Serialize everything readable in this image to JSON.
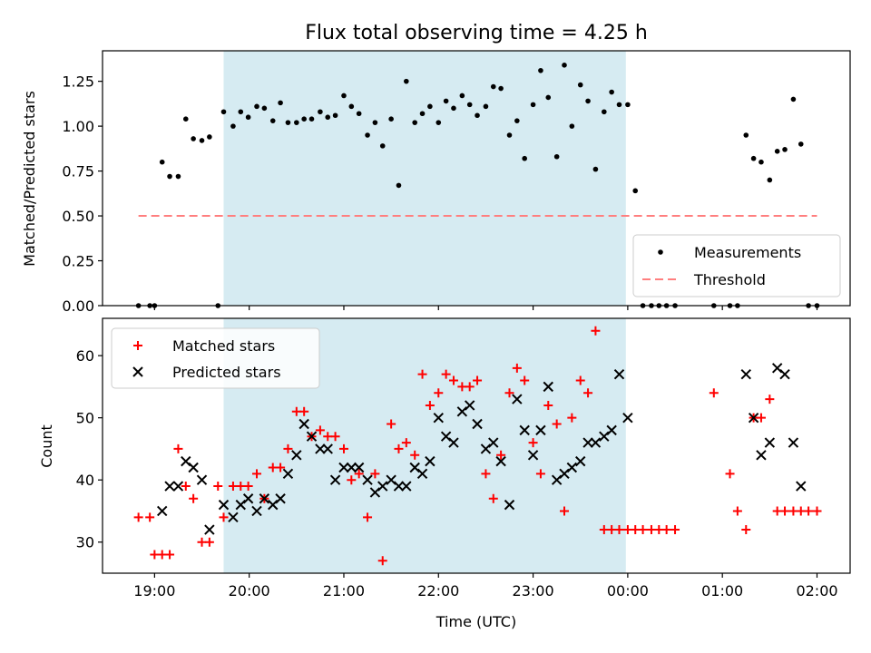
{
  "figure": {
    "title": "Flux total observing time = 4.25 h",
    "xlabel": "Time (UTC)",
    "x_ticks": [
      "19:00",
      "20:00",
      "21:00",
      "22:00",
      "23:00",
      "00:00",
      "01:00",
      "02:00"
    ]
  },
  "chart_data": [
    {
      "type": "scatter",
      "name": "ratio",
      "ylabel": "Matched/Predicted stars",
      "ylim": [
        0,
        1.42
      ],
      "y_ticks": [
        "0.00",
        "0.25",
        "0.50",
        "0.75",
        "1.00",
        "1.25"
      ],
      "xlim_hours": [
        18.45,
        26.35
      ],
      "shaded_span_hours": [
        19.73,
        23.98
      ],
      "shade_color": "#add8e6",
      "legend": {
        "placement": "lower right",
        "entries": [
          "Measurements",
          "Threshold"
        ]
      },
      "threshold": {
        "name": "Threshold",
        "value": 0.5,
        "x_start_hours": 18.83,
        "x_end_hours": 26.0,
        "color": "#ff7f7f"
      },
      "measurements": {
        "name": "Measurements",
        "color": "#000000",
        "x_hours": [
          18.83,
          18.95,
          19.0,
          19.08,
          19.16,
          19.25,
          19.33,
          19.41,
          19.5,
          19.58,
          19.67,
          19.73,
          19.83,
          19.91,
          19.99,
          20.08,
          20.16,
          20.25,
          20.33,
          20.41,
          20.5,
          20.58,
          20.66,
          20.75,
          20.83,
          20.91,
          21.0,
          21.08,
          21.16,
          21.25,
          21.33,
          21.41,
          21.5,
          21.58,
          21.66,
          21.75,
          21.83,
          21.91,
          22.0,
          22.08,
          22.16,
          22.25,
          22.33,
          22.41,
          22.5,
          22.58,
          22.66,
          22.75,
          22.83,
          22.91,
          23.0,
          23.08,
          23.16,
          23.25,
          23.33,
          23.41,
          23.5,
          23.58,
          23.66,
          23.75,
          23.83,
          23.91,
          24.0,
          24.08,
          24.16,
          24.25,
          24.33,
          24.41,
          24.5,
          24.91,
          25.08,
          25.16,
          25.25,
          25.33,
          25.41,
          25.5,
          25.58,
          25.66,
          25.75,
          25.83,
          25.91,
          26.0
        ],
        "y": [
          0.0,
          0.0,
          0.0,
          0.8,
          0.72,
          0.72,
          1.04,
          0.93,
          0.92,
          0.94,
          0.0,
          1.08,
          1.0,
          1.08,
          1.05,
          1.11,
          1.1,
          1.03,
          1.13,
          1.02,
          1.02,
          1.04,
          1.04,
          1.08,
          1.05,
          1.06,
          1.17,
          1.11,
          1.07,
          0.95,
          1.02,
          0.89,
          1.04,
          0.67,
          1.25,
          1.02,
          1.07,
          1.11,
          1.02,
          1.14,
          1.1,
          1.17,
          1.12,
          1.06,
          1.11,
          1.22,
          1.21,
          0.95,
          1.03,
          0.82,
          1.12,
          1.31,
          1.16,
          0.83,
          1.34,
          1.0,
          1.23,
          1.14,
          0.76,
          1.08,
          1.19,
          1.12,
          1.12,
          0.64,
          0.0,
          0.0,
          0.0,
          0.0,
          0.0,
          0.0,
          0.0,
          0.0,
          0.95,
          0.82,
          0.8,
          0.7,
          0.86,
          0.87,
          1.15,
          0.9,
          0.0,
          0.0
        ]
      }
    },
    {
      "type": "scatter",
      "name": "counts",
      "ylabel": "Count",
      "ylim": [
        25,
        66
      ],
      "y_ticks": [
        "30",
        "40",
        "50",
        "60"
      ],
      "xlim_hours": [
        18.45,
        26.35
      ],
      "shaded_span_hours": [
        19.73,
        23.98
      ],
      "shade_color": "#add8e6",
      "legend": {
        "placement": "upper left",
        "entries": [
          "Matched stars",
          "Predicted stars"
        ]
      },
      "series": [
        {
          "name": "Matched stars",
          "marker": "+",
          "color": "#ff0000",
          "x_hours": [
            18.83,
            18.95,
            19.0,
            19.08,
            19.16,
            19.25,
            19.33,
            19.41,
            19.5,
            19.58,
            19.67,
            19.73,
            19.83,
            19.91,
            19.99,
            20.08,
            20.16,
            20.25,
            20.33,
            20.41,
            20.5,
            20.58,
            20.66,
            20.75,
            20.83,
            20.91,
            21.0,
            21.08,
            21.16,
            21.25,
            21.33,
            21.41,
            21.5,
            21.58,
            21.66,
            21.75,
            21.83,
            21.91,
            22.0,
            22.08,
            22.16,
            22.25,
            22.33,
            22.41,
            22.5,
            22.58,
            22.66,
            22.75,
            22.83,
            22.91,
            23.0,
            23.08,
            23.16,
            23.25,
            23.33,
            23.41,
            23.5,
            23.58,
            23.66,
            23.75,
            23.83,
            23.91,
            24.0,
            24.08,
            24.16,
            24.25,
            24.33,
            24.41,
            24.5,
            24.91,
            25.08,
            25.16,
            25.25,
            25.33,
            25.41,
            25.5,
            25.58,
            25.66,
            25.75,
            25.83,
            25.91,
            26.0
          ],
          "y": [
            34,
            34,
            28,
            28,
            28,
            45,
            39,
            37,
            30,
            30,
            39,
            34,
            39,
            39,
            39,
            41,
            37,
            42,
            42,
            45,
            51,
            51,
            47,
            48,
            47,
            47,
            45,
            40,
            41,
            34,
            41,
            27,
            49,
            45,
            46,
            44,
            57,
            52,
            54,
            57,
            56,
            55,
            55,
            56,
            41,
            37,
            44,
            54,
            58,
            56,
            46,
            41,
            52,
            49,
            35,
            50,
            56,
            54,
            64,
            32,
            32,
            32,
            32,
            32,
            32,
            32,
            32,
            32,
            32,
            54,
            41,
            35,
            32,
            50,
            50,
            53,
            35,
            35,
            35,
            35,
            35,
            35
          ]
        },
        {
          "name": "Predicted stars",
          "marker": "x",
          "color": "#000000",
          "x_hours": [
            19.08,
            19.16,
            19.25,
            19.33,
            19.41,
            19.5,
            19.58,
            19.73,
            19.83,
            19.91,
            19.99,
            20.08,
            20.16,
            20.25,
            20.33,
            20.41,
            20.5,
            20.58,
            20.66,
            20.75,
            20.83,
            20.91,
            21.0,
            21.08,
            21.16,
            21.25,
            21.33,
            21.41,
            21.5,
            21.58,
            21.66,
            21.75,
            21.83,
            21.91,
            22.0,
            22.08,
            22.16,
            22.25,
            22.33,
            22.41,
            22.5,
            22.58,
            22.66,
            22.75,
            22.83,
            22.91,
            23.0,
            23.08,
            23.16,
            23.25,
            23.33,
            23.41,
            23.5,
            23.58,
            23.66,
            23.75,
            23.83,
            23.91,
            24.0,
            25.25,
            25.33,
            25.41,
            25.5,
            25.58,
            25.66,
            25.75,
            25.83
          ],
          "y": [
            35,
            39,
            39,
            43,
            42,
            40,
            32,
            36,
            34,
            36,
            37,
            35,
            37,
            36,
            37,
            41,
            44,
            49,
            47,
            45,
            45,
            40,
            42,
            42,
            42,
            40,
            38,
            39,
            40,
            39,
            39,
            42,
            41,
            43,
            50,
            47,
            46,
            51,
            52,
            49,
            45,
            46,
            43,
            36,
            53,
            48,
            44,
            48,
            55,
            40,
            41,
            42,
            43,
            46,
            46,
            47,
            48,
            57,
            50,
            57,
            50,
            44,
            46,
            58,
            57,
            46,
            39
          ]
        }
      ]
    }
  ]
}
